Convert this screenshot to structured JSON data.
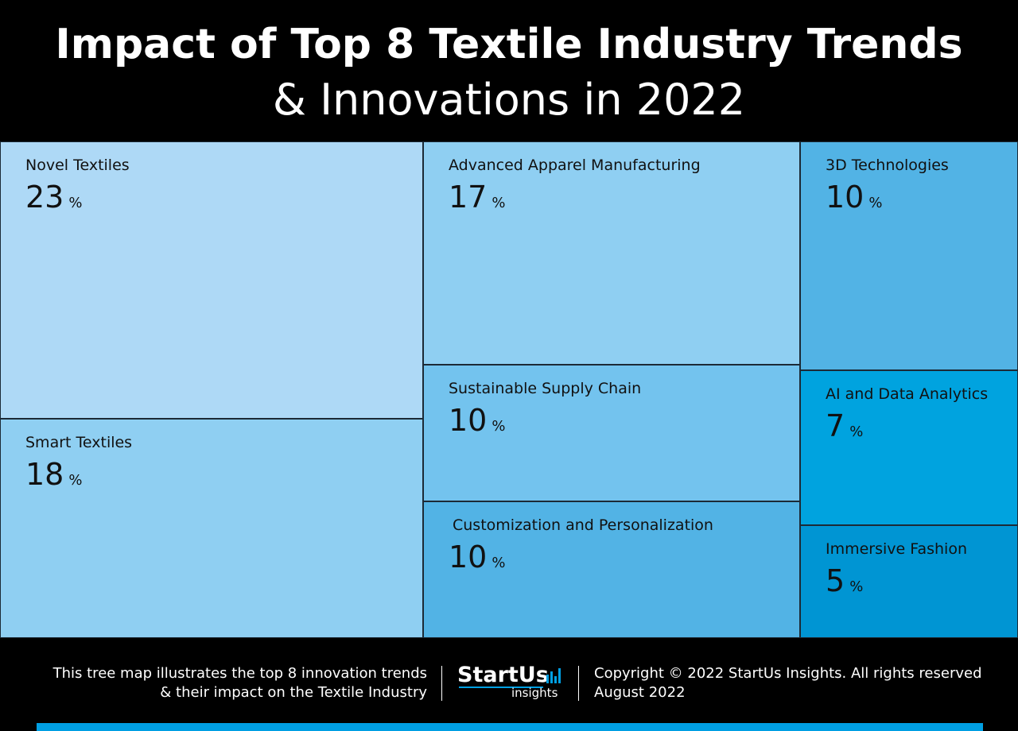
{
  "header": {
    "title": "Impact of Top 8 Textile Industry Trends",
    "subtitle": "& Innovations in 2022"
  },
  "chart_data": {
    "type": "treemap",
    "unit": "%",
    "items": [
      {
        "label": "Novel Textiles",
        "value": 23,
        "color": "#aed9f6"
      },
      {
        "label": "Smart Textiles",
        "value": 18,
        "color": "#8fcff2"
      },
      {
        "label": "Advanced Apparel Manufacturing",
        "value": 17,
        "color": "#8fcff2"
      },
      {
        "label": "Sustainable Supply Chain",
        "value": 10,
        "color": "#73c3ee"
      },
      {
        "label": "Customization and Personalization",
        "value": 10,
        "color": "#52b3e5"
      },
      {
        "label": "3D Technologies",
        "value": 10,
        "color": "#52b3e5"
      },
      {
        "label": "AI and Data Analytics",
        "value": 7,
        "color": "#00a3df"
      },
      {
        "label": "Immersive Fashion",
        "value": 5,
        "color": "#0095d3"
      }
    ]
  },
  "footer": {
    "description_line1": "This tree map illustrates the top 8 innovation trends",
    "description_line2": "& their impact on the Textile Industry",
    "logo_brand": "StartUs",
    "logo_sub": "insights",
    "copyright_line1": "Copyright © 2022 StartUs Insights. All rights reserved",
    "copyright_line2": "August 2022",
    "accent_color": "#009fe3"
  }
}
